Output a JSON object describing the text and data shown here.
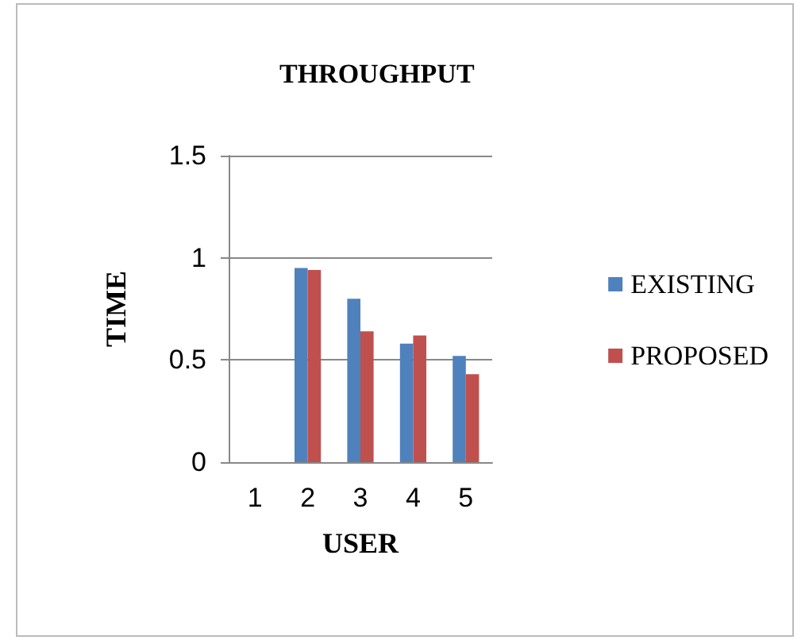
{
  "chart_data": {
    "type": "bar",
    "title": "THROUGHPUT",
    "xlabel": "USER",
    "ylabel": "TIME",
    "categories": [
      "1",
      "2",
      "3",
      "4",
      "5"
    ],
    "series": [
      {
        "name": "EXISTING",
        "color": "#4f81bd",
        "values": [
          null,
          0.95,
          0.8,
          0.58,
          0.52
        ]
      },
      {
        "name": "PROPOSED",
        "color": "#c0504d",
        "values": [
          null,
          0.94,
          0.64,
          0.62,
          0.43
        ]
      }
    ],
    "ylim": [
      0,
      1.5
    ],
    "yticks": [
      0,
      0.5,
      1,
      1.5
    ],
    "grid": "y",
    "legend": "right"
  }
}
